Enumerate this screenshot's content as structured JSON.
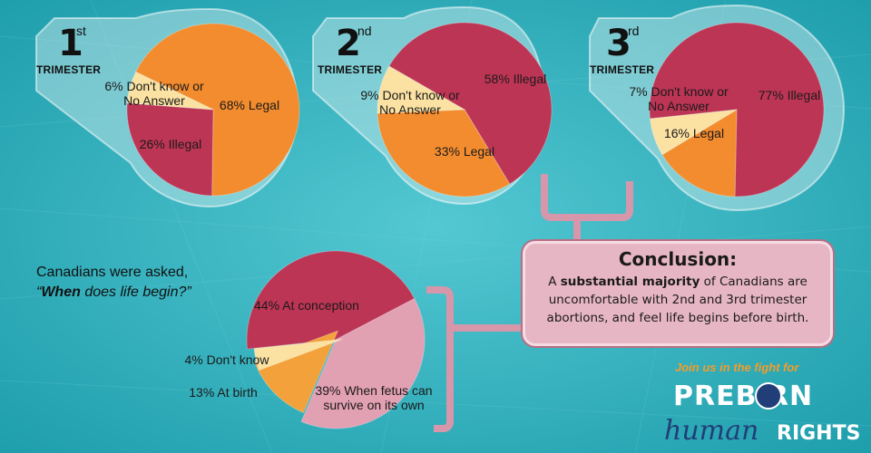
{
  "trimesters": [
    {
      "number": "1",
      "suffix": "st",
      "word": "TRIMESTER"
    },
    {
      "number": "2",
      "suffix": "nd",
      "word": "TRIMESTER"
    },
    {
      "number": "3",
      "suffix": "rd",
      "word": "TRIMESTER"
    }
  ],
  "question": {
    "line1": "Canadians were asked,",
    "quote_open": "“",
    "bold": "When",
    "rest": " does life begin?”"
  },
  "conclusion": {
    "title": "Conclusion:",
    "pre": "A ",
    "bold": "substantial majority",
    "post": " of Canadians are uncomfortable with 2nd and 3rd trimester abortions, and feel life begins before birth."
  },
  "branding": {
    "join": "Join us in the fight for",
    "logo_top": "PREB RN",
    "logo_script": "human",
    "logo_rights": "RIGHTS"
  },
  "colors": {
    "illegal": "#bd3555",
    "legal": "#f38c2e",
    "dontknow": "#fbe2a2",
    "birth": "#f3a13a",
    "survive": "#e2a0b3",
    "background": "#2fb2bf"
  },
  "chart_data": [
    {
      "type": "pie",
      "title": "1st TRIMESTER",
      "slices": [
        {
          "label": "68% Legal",
          "value": 68,
          "color": "#f38c2e"
        },
        {
          "label": "26% Illegal",
          "value": 26,
          "color": "#bd3555"
        },
        {
          "label": "6% Don't know or No Answer",
          "value": 6,
          "color": "#fbe2a2"
        }
      ]
    },
    {
      "type": "pie",
      "title": "2nd TRIMESTER",
      "slices": [
        {
          "label": "58% Illegal",
          "value": 58,
          "color": "#bd3555"
        },
        {
          "label": "33% Legal",
          "value": 33,
          "color": "#f38c2e"
        },
        {
          "label": "9% Don't know or No Answer",
          "value": 9,
          "color": "#fbe2a2"
        }
      ]
    },
    {
      "type": "pie",
      "title": "3rd TRIMESTER",
      "slices": [
        {
          "label": "77% Illegal",
          "value": 77,
          "color": "#bd3555"
        },
        {
          "label": "16% Legal",
          "value": 16,
          "color": "#f38c2e"
        },
        {
          "label": "7% Don't know or No Answer",
          "value": 7,
          "color": "#fbe2a2"
        }
      ]
    },
    {
      "type": "pie",
      "title": "When does life begin?",
      "slices": [
        {
          "label": "44% At conception",
          "value": 44,
          "color": "#bd3555"
        },
        {
          "label": "39% When fetus can survive on its own",
          "value": 39,
          "color": "#e2a0b3"
        },
        {
          "label": "13% At birth",
          "value": 13,
          "color": "#f3a13a"
        },
        {
          "label": "4% Don't know",
          "value": 4,
          "color": "#fbe2a2"
        }
      ]
    }
  ]
}
